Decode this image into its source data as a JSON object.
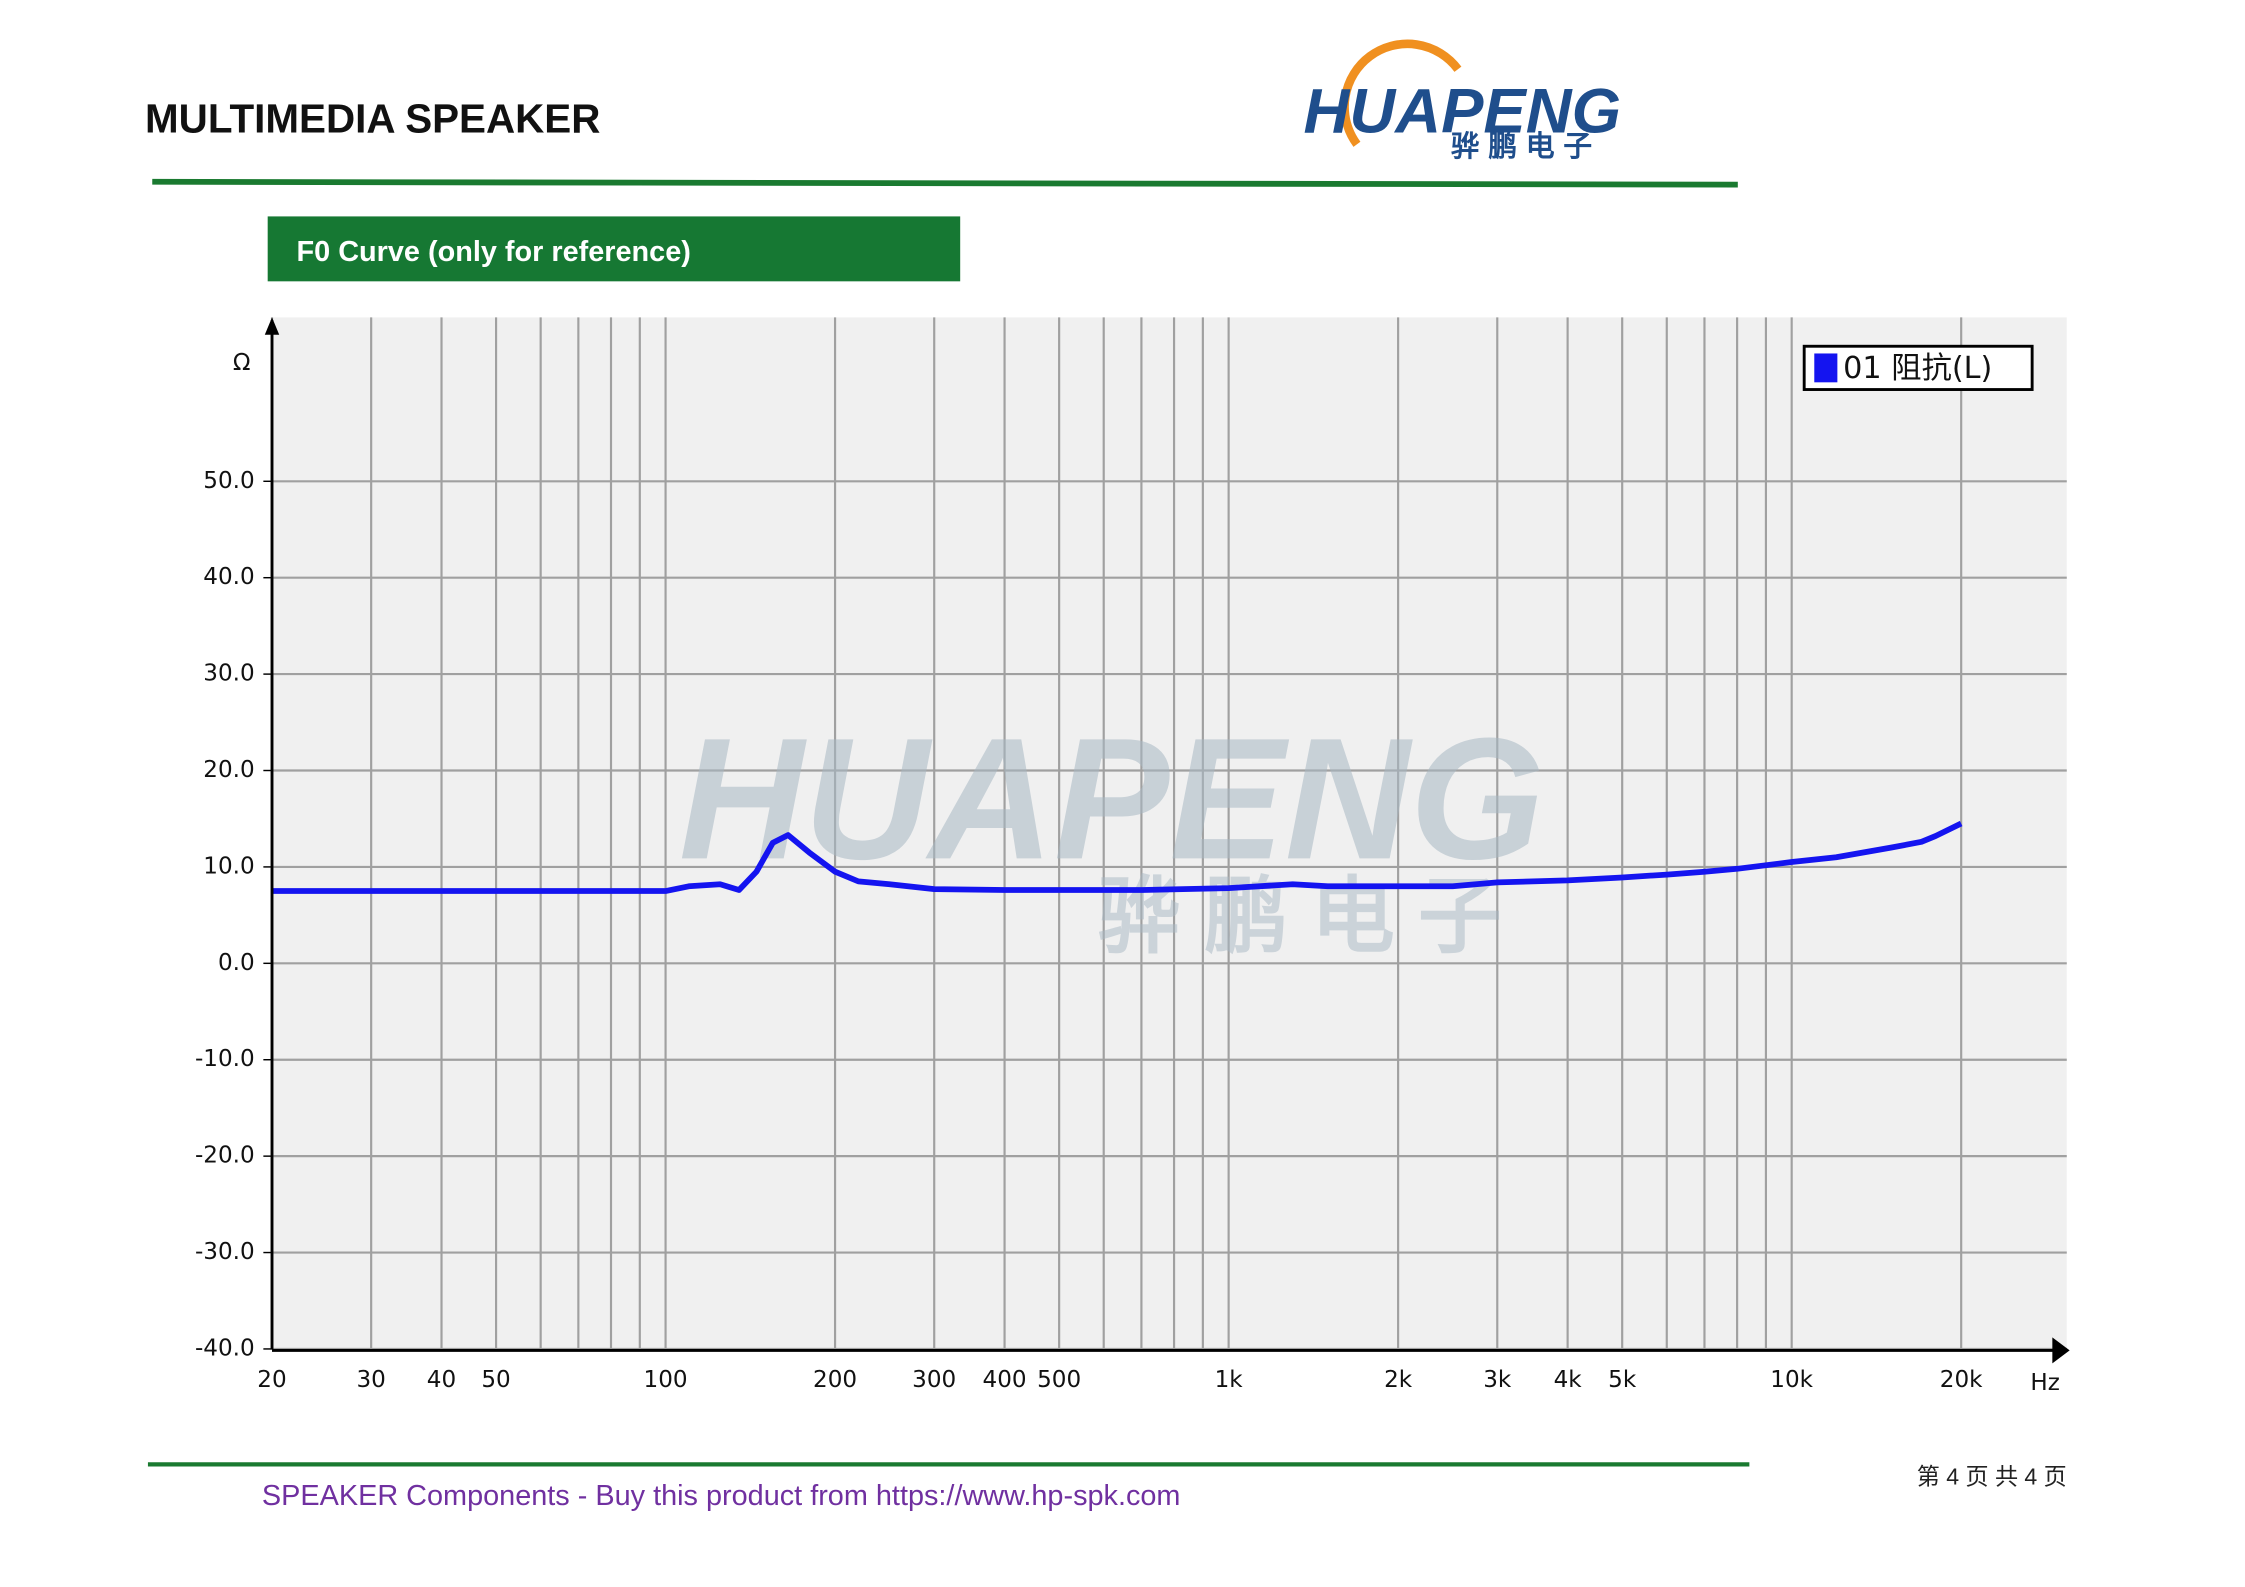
{
  "header": {
    "title": "MULTIMEDIA SPEAKER"
  },
  "logo": {
    "name": "HUAPENG",
    "chinese": "骅鹏电子"
  },
  "section": {
    "title": "F0 Curve (only for reference)"
  },
  "watermark": {
    "name": "HUAPENG",
    "chinese": "骅 鹏 电 子"
  },
  "chart_data": {
    "type": "line",
    "y_label": "Ω",
    "x_label": "Hz",
    "x": [
      20,
      30,
      50,
      100,
      110,
      125,
      135,
      145,
      155,
      165,
      180,
      200,
      220,
      250,
      300,
      400,
      500,
      700,
      1000,
      1300,
      1500,
      2000,
      2500,
      3000,
      4000,
      5000,
      6000,
      7000,
      8000,
      10000,
      12000,
      15000,
      17000,
      18000,
      20000
    ],
    "series": [
      {
        "name": "01 阻抗(L)",
        "color": "#1414f0",
        "values": [
          7.5,
          7.5,
          7.5,
          7.5,
          8.0,
          8.2,
          7.6,
          9.5,
          12.5,
          13.3,
          11.5,
          9.5,
          8.5,
          8.2,
          7.7,
          7.6,
          7.6,
          7.6,
          7.8,
          8.2,
          8.0,
          8.0,
          8.0,
          8.4,
          8.6,
          8.9,
          9.2,
          9.5,
          9.8,
          10.5,
          11.0,
          12.0,
          12.6,
          13.2,
          14.5
        ]
      }
    ],
    "xlim": [
      20,
      30800
    ],
    "ylim": [
      -40,
      67
    ],
    "xscale": "log",
    "grid": true,
    "legend": "upper right",
    "xticks": [
      20,
      30,
      40,
      50,
      100,
      200,
      300,
      400,
      500,
      {
        "value": 1000,
        "label": "1k"
      },
      {
        "value": 2000,
        "label": "2k"
      },
      {
        "value": 3000,
        "label": "3k"
      },
      {
        "value": 4000,
        "label": "4k"
      },
      {
        "value": 5000,
        "label": "5k"
      },
      {
        "value": 10000,
        "label": "10k"
      },
      {
        "value": 20000,
        "label": "20k"
      }
    ],
    "x_minor_ticks": [
      60,
      70,
      80,
      90,
      600,
      700,
      800,
      900,
      6000,
      7000,
      8000,
      9000
    ],
    "yticks": [
      {
        "value": -40,
        "label": "-40.0"
      },
      {
        "value": -30,
        "label": "-30.0"
      },
      {
        "value": -20,
        "label": "-20.0"
      },
      {
        "value": -10,
        "label": "-10.0"
      },
      {
        "value": 0,
        "label": "0.0"
      },
      {
        "value": 10,
        "label": "10.0"
      },
      {
        "value": 20,
        "label": "20.0"
      },
      {
        "value": 30,
        "label": "30.0"
      },
      {
        "value": 40,
        "label": "40.0"
      },
      {
        "value": 50,
        "label": "50.0"
      }
    ]
  },
  "footer": {
    "text": "SPEAKER Components - Buy this product from  https://www.hp-spk.com",
    "page": "第 4 页 共 4 页"
  }
}
